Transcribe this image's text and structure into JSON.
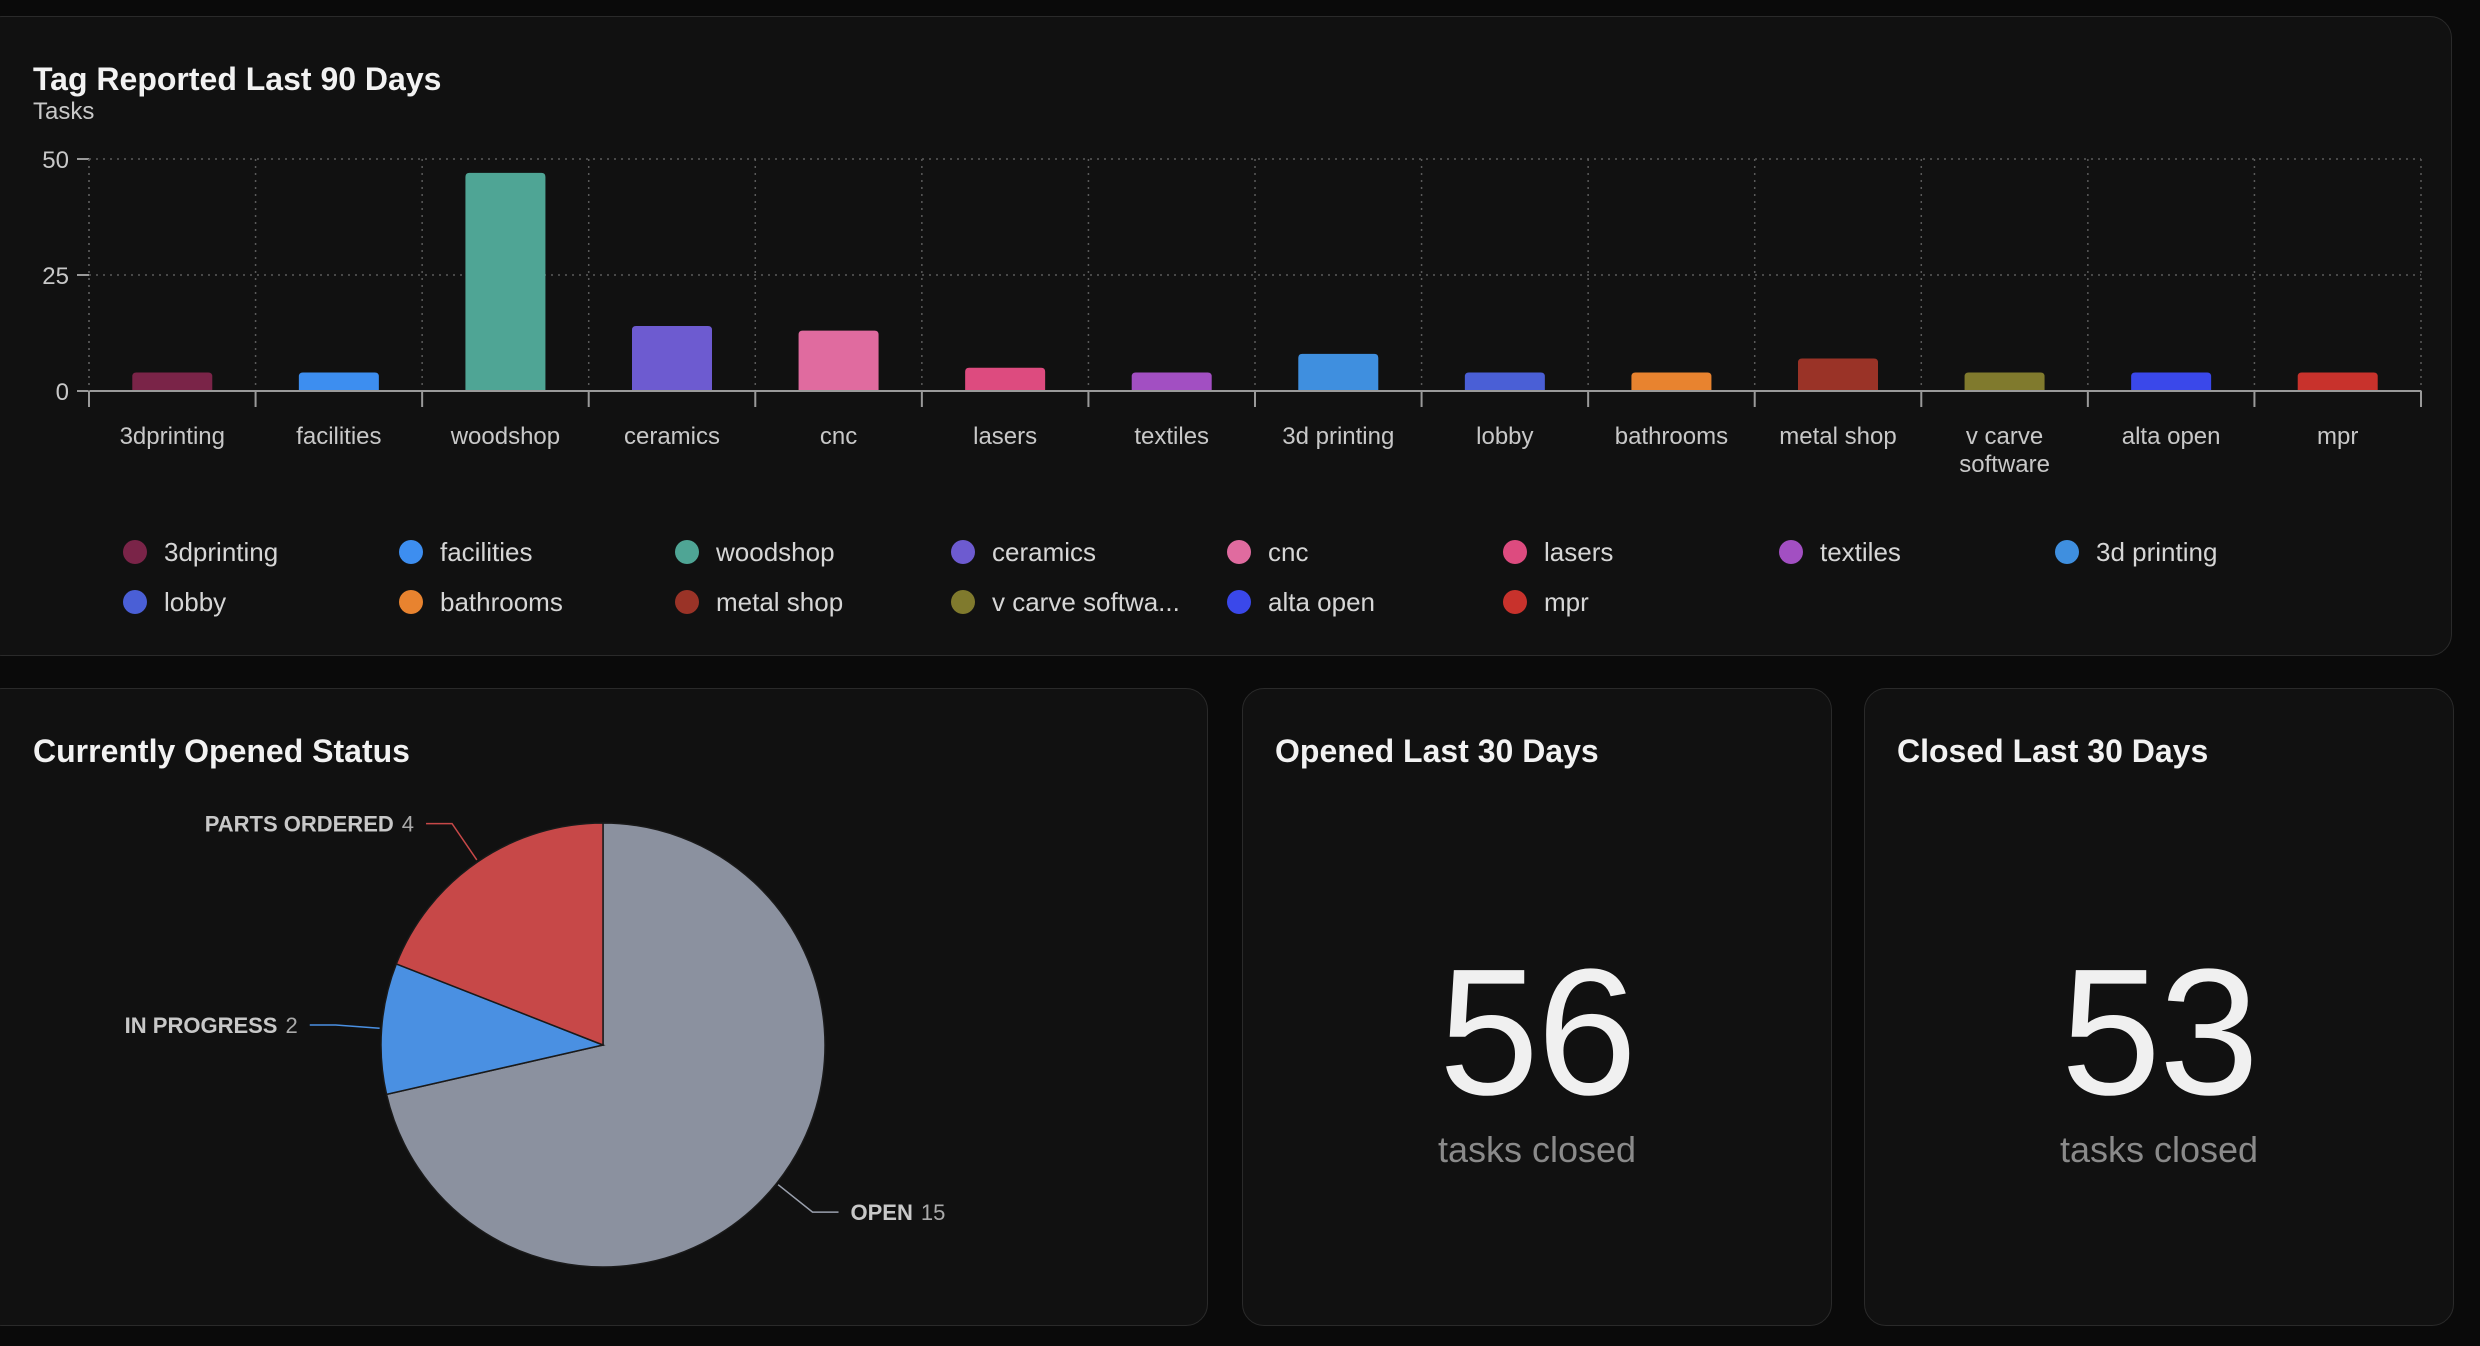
{
  "bar_panel": {
    "title": "Tag Reported Last 90 Days",
    "subtitle": "Tasks"
  },
  "pie_panel": {
    "title": "Currently Opened Status"
  },
  "opened_panel": {
    "title": "Opened Last 30 Days",
    "value": "56",
    "caption": "tasks closed"
  },
  "closed_panel": {
    "title": "Closed Last 30 Days",
    "value": "53",
    "caption": "tasks closed"
  },
  "legend": [
    {
      "label": "3dprinting",
      "color": "#7a2448"
    },
    {
      "label": "facilities",
      "color": "#3d8ef0"
    },
    {
      "label": "woodshop",
      "color": "#4fa595"
    },
    {
      "label": "ceramics",
      "color": "#6d5bd0"
    },
    {
      "label": "cnc",
      "color": "#e06b9f"
    },
    {
      "label": "lasers",
      "color": "#dd4b7f"
    },
    {
      "label": "textiles",
      "color": "#a24fc2"
    },
    {
      "label": "3d printing",
      "color": "#3f8fdf"
    },
    {
      "label": "lobby",
      "color": "#4a5fd6"
    },
    {
      "label": "bathrooms",
      "color": "#e8832f"
    },
    {
      "label": "metal shop",
      "color": "#9a3327"
    },
    {
      "label": "v carve softwa...",
      "color": "#807a2d"
    },
    {
      "label": "alta open",
      "color": "#3a48ea"
    },
    {
      "label": "mpr",
      "color": "#c8322c"
    }
  ],
  "chart_data": [
    {
      "type": "bar",
      "title": "Tag Reported Last 90 Days",
      "ylabel": "Tasks",
      "ylim": [
        0,
        50
      ],
      "yticks": [
        0,
        25,
        50
      ],
      "grid": true,
      "legend_position": "bottom",
      "categories": [
        "3dprinting",
        "facilities",
        "woodshop",
        "ceramics",
        "cnc",
        "lasers",
        "textiles",
        "3d printing",
        "lobby",
        "bathrooms",
        "metal shop",
        "v carve software",
        "alta open",
        "mpr"
      ],
      "values": [
        4,
        4,
        47,
        14,
        13,
        5,
        4,
        8,
        4,
        4,
        7,
        4,
        4,
        4
      ],
      "colors": [
        "#7a2448",
        "#3d8ef0",
        "#4fa595",
        "#6d5bd0",
        "#e06b9f",
        "#dd4b7f",
        "#a24fc2",
        "#3f8fdf",
        "#4a5fd6",
        "#e8832f",
        "#9a3327",
        "#807a2d",
        "#3a48ea",
        "#c8322c"
      ]
    },
    {
      "type": "pie",
      "title": "Currently Opened Status",
      "slices": [
        {
          "label": "OPEN",
          "value": 15,
          "color": "#8b919f"
        },
        {
          "label": "IN PROGRESS",
          "value": 2,
          "color": "#4a90e2"
        },
        {
          "label": "PARTS ORDERED",
          "value": 4,
          "color": "#c74848"
        }
      ]
    }
  ]
}
